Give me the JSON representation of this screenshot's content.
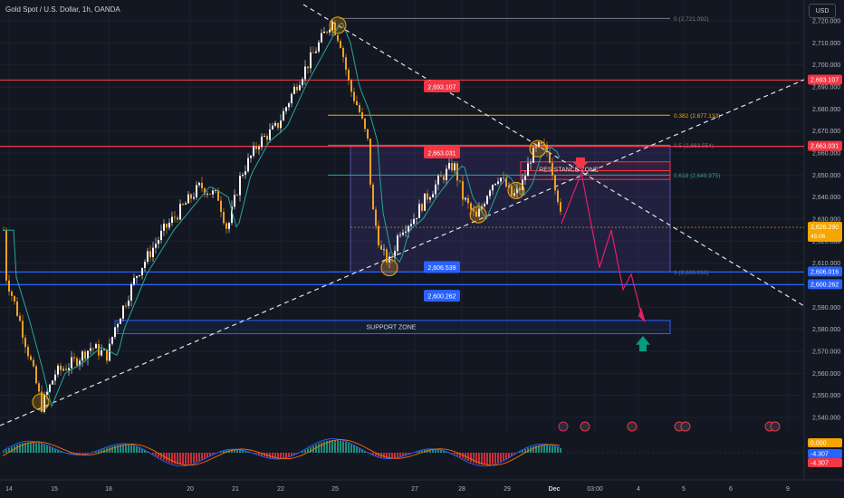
{
  "header": {
    "symbol": "Gold Spot / U.S. Dollar, 1h, OANDA",
    "currency_button": "USD"
  },
  "colors": {
    "bg": "#131722",
    "up": "#f0a020",
    "down": "#d89030",
    "red": "#f23645",
    "blue": "#2962ff",
    "orange": "#f7a600",
    "teal": "#22ab94",
    "grid": "#1e222d"
  },
  "price_axis": {
    "ticks": [
      "2,720.000",
      "2,710.000",
      "2,700.000",
      "2,690.000",
      "2,680.000",
      "2,670.000",
      "2,660.000",
      "2,650.000",
      "2,640.000",
      "2,630.000",
      "2,620.000",
      "2,610.000",
      "2,600.000",
      "2,590.000",
      "2,580.000",
      "2,570.000",
      "2,560.000",
      "2,550.000",
      "2,540.000"
    ],
    "badges": [
      {
        "label": "2,693.107",
        "color": "#f23645"
      },
      {
        "label": "2,663.031",
        "color": "#f23645"
      },
      {
        "label": "2,626.290",
        "sub": "45:06",
        "color": "#f7a600"
      },
      {
        "label": "2,606.016",
        "color": "#2962ff"
      },
      {
        "label": "2,600.262",
        "color": "#2962ff"
      }
    ]
  },
  "time_axis": [
    "14",
    "15",
    "18",
    "20",
    "21",
    "22",
    "25",
    "27",
    "28",
    "29",
    "Dec",
    "03:00",
    "4",
    "5",
    "6",
    "9"
  ],
  "fib_levels": [
    {
      "label": "0 (2,721.092)",
      "color": "#787b86"
    },
    {
      "label": "0.382 (2,677.133)",
      "color": "#f7a600"
    },
    {
      "label": "0.5 (2,663.554)",
      "color": "#787b86"
    },
    {
      "label": "0.618 (2,649.975)",
      "color": "#22ab94"
    },
    {
      "label": "1 (2,606.016)",
      "color": "#787b86"
    }
  ],
  "chart_labels": [
    {
      "text": "2,693.107",
      "color": "#f23645"
    },
    {
      "text": "2,663.031",
      "color": "#f23645"
    },
    {
      "text": "2,606.539",
      "color": "#2962ff"
    },
    {
      "text": "2,600.262",
      "color": "#2962ff"
    }
  ],
  "zones": {
    "resistance": "RESISTANCE ZONE",
    "support": "SUPPORT ZONE"
  },
  "oscillator": {
    "labels": [
      {
        "text": "0.000",
        "color": "#f7a600"
      },
      {
        "text": "-4.307",
        "color": "#2962ff"
      },
      {
        "text": "-4.307",
        "color": "#f23645"
      }
    ]
  }
}
